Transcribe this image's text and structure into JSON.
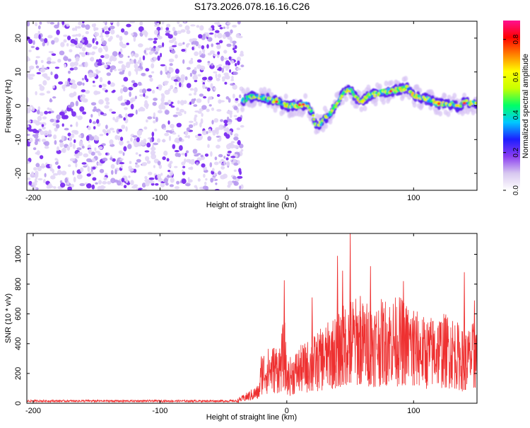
{
  "title": "S173.2026.078.16.16.C26",
  "spectrogram": {
    "xlabel": "Height of straight line (km)",
    "ylabel": "Frequency (Hz)",
    "xlim": [
      -205,
      150
    ],
    "ylim": [
      -25,
      25
    ],
    "xticks": [
      -200,
      -100,
      0,
      100
    ],
    "yticks": [
      -20,
      -10,
      0,
      10,
      20
    ],
    "noise_region": [
      -205,
      -35
    ],
    "colorbar": {
      "label": "Normalized spectral amplitude",
      "range": [
        0,
        0.9
      ],
      "ticks": [
        "0.0",
        "0.2",
        "0.4",
        "0.6",
        "0.8"
      ],
      "colors": [
        "#ffffff",
        "#d8c8f0",
        "#8a3df0",
        "#1d1dff",
        "#00c8ff",
        "#00ff66",
        "#c8ff00",
        "#ffff00",
        "#ff8000",
        "#ff0000",
        "#ff1090"
      ]
    },
    "ridge": {
      "height_km": [
        -35,
        -25,
        -15,
        -8,
        0,
        10,
        15,
        20,
        22,
        25,
        28,
        35,
        40,
        45,
        50,
        55,
        60,
        65,
        75,
        85,
        95,
        100,
        110,
        120,
        130,
        135,
        140,
        150
      ],
      "frequency_hz": [
        1.5,
        3.0,
        2.0,
        1.5,
        0.0,
        0.0,
        0.5,
        -2.0,
        -5.0,
        -6.0,
        -4.5,
        -2.0,
        1.0,
        4.0,
        5.0,
        2.0,
        1.5,
        3.0,
        4.0,
        4.5,
        5.5,
        3.0,
        2.0,
        0.5,
        0.5,
        -0.5,
        1.0,
        0.5
      ]
    }
  },
  "snr": {
    "xlabel": "Height of straight line (km)",
    "ylabel": "SNR (10 * v/v)",
    "xlim": [
      -205,
      150
    ],
    "ylim": [
      0,
      1140
    ],
    "xticks": [
      -200,
      -100,
      0,
      100
    ],
    "yticks": [
      0,
      200,
      400,
      600,
      800,
      1000
    ],
    "line_color": "#ee3030",
    "profile": {
      "type": "line",
      "x": [
        -205,
        -40,
        -22,
        -20,
        -5,
        -2,
        0,
        10,
        20,
        30,
        40,
        50,
        60,
        70,
        80,
        90,
        100,
        110,
        120,
        130,
        140,
        150
      ],
      "mean": [
        15,
        15,
        80,
        220,
        260,
        380,
        180,
        240,
        280,
        330,
        380,
        460,
        430,
        430,
        450,
        450,
        400,
        360,
        380,
        380,
        300,
        360
      ],
      "peaks": [
        {
          "x": -2,
          "y": 825
        },
        {
          "x": 20,
          "y": 710
        },
        {
          "x": 40,
          "y": 990
        },
        {
          "x": 44,
          "y": 890
        },
        {
          "x": 50,
          "y": 1140
        },
        {
          "x": 58,
          "y": 720
        },
        {
          "x": 66,
          "y": 920
        },
        {
          "x": 92,
          "y": 820
        },
        {
          "x": 100,
          "y": 620
        },
        {
          "x": 140,
          "y": 880
        },
        {
          "x": 148,
          "y": 690
        }
      ]
    }
  }
}
